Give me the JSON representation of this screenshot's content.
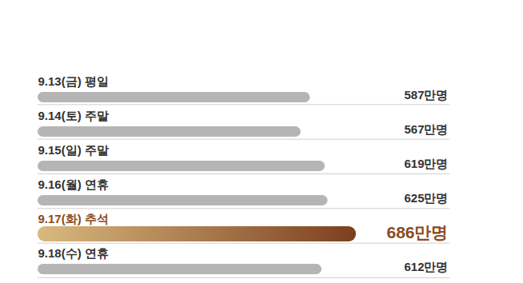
{
  "chart_data": {
    "type": "bar",
    "orientation": "horizontal",
    "categories": [
      "9.13(금) 평일",
      "9.14(토) 주말",
      "9.15(일) 주말",
      "9.16(월) 연휴",
      "9.17(화) 추석",
      "9.18(수) 연휴"
    ],
    "values": [
      587,
      567,
      619,
      625,
      686,
      612
    ],
    "value_labels": [
      "587만명",
      "567만명",
      "619만명",
      "625만명",
      "686만명",
      "612만명"
    ],
    "data_labels": true,
    "colors": [
      "#b5b5b5",
      "#b5b5b5",
      "#b5b5b5",
      "#b5b5b5",
      "#7d3f1e",
      "#b5b5b5"
    ],
    "xlim": [
      0,
      686
    ],
    "tick_labels": false,
    "grid": false
  }
}
